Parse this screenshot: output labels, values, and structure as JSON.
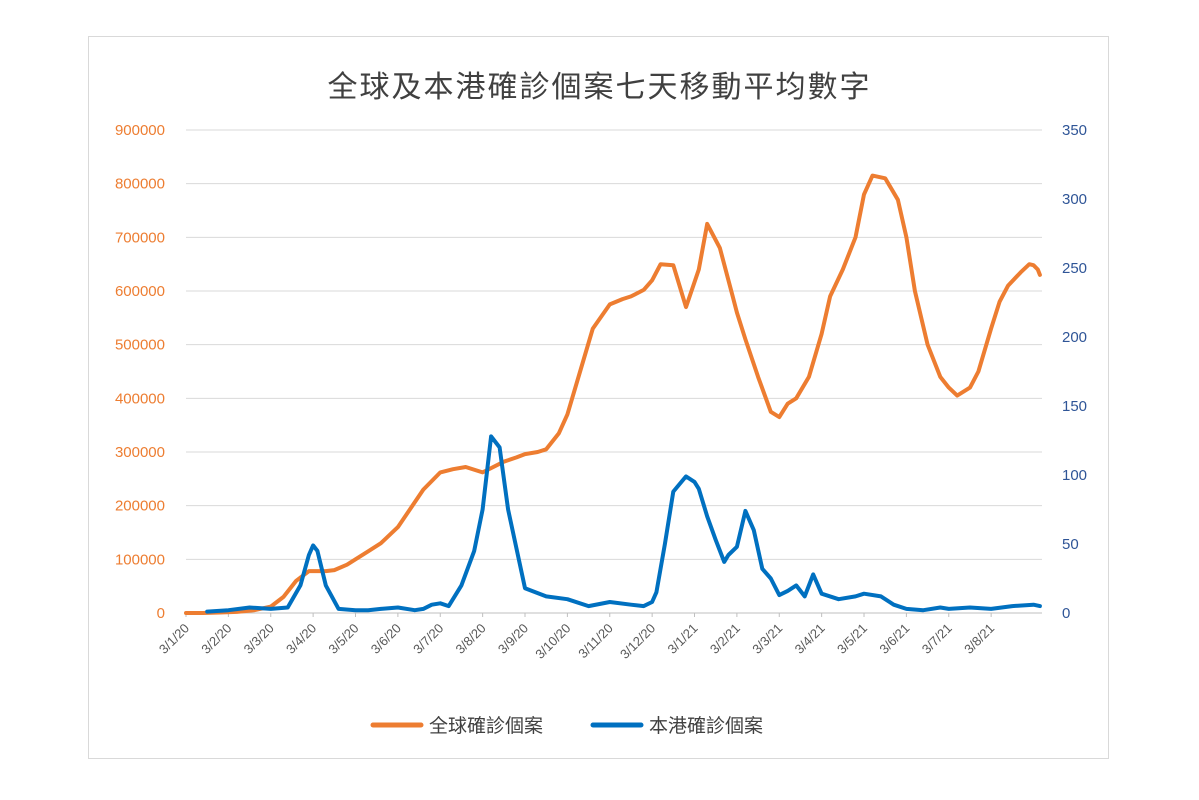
{
  "chart_data": {
    "type": "line",
    "title": "全球及本港確診個案七天移動平均數字",
    "categories": [
      "3/1/20",
      "3/2/20",
      "3/3/20",
      "3/4/20",
      "3/5/20",
      "3/6/20",
      "3/7/20",
      "3/8/20",
      "3/9/20",
      "3/10/20",
      "3/11/20",
      "3/12/20",
      "3/1/21",
      "3/2/21",
      "3/3/21",
      "3/4/21",
      "3/5/21",
      "3/6/21",
      "3/7/21",
      "3/8/21"
    ],
    "y_left": {
      "ticks": [
        "900000",
        "800000",
        "700000",
        "600000",
        "500000",
        "400000",
        "300000",
        "200000",
        "100000",
        "0"
      ],
      "ylim": [
        0,
        900000
      ]
    },
    "y_right": {
      "ticks": [
        "350",
        "300",
        "250",
        "200",
        "150",
        "100",
        "50",
        "0"
      ],
      "ylim": [
        0,
        350
      ]
    },
    "grid": true,
    "legend_position": "bottom",
    "series": [
      {
        "name": "全球確診個案",
        "axis": "left",
        "color": "#ed7d31",
        "x": [
          0,
          0.4,
          0.8,
          1.2,
          1.6,
          2.0,
          2.3,
          2.6,
          2.9,
          3.1,
          3.3,
          3.5,
          3.8,
          4.0,
          4.3,
          4.6,
          5.0,
          5.3,
          5.6,
          6.0,
          6.3,
          6.6,
          7.0,
          7.2,
          7.5,
          7.8,
          8.0,
          8.3,
          8.5,
          8.8,
          9.0,
          9.3,
          9.6,
          10.0,
          10.3,
          10.5,
          10.8,
          11.0,
          11.2,
          11.5,
          11.8,
          12.1,
          12.3,
          12.6,
          12.9,
          13.0,
          13.2,
          13.5,
          13.8,
          14.0,
          14.2,
          14.4,
          14.7,
          15.0,
          15.2,
          15.5,
          15.8,
          16.0,
          16.2,
          16.5,
          16.8,
          17.0,
          17.2,
          17.5,
          17.8,
          18.0,
          18.2,
          18.5,
          18.7,
          19.0,
          19.2,
          19.4,
          19.7,
          19.9,
          20.0,
          20.1,
          20.15
        ],
        "values": [
          0,
          0,
          1000,
          2000,
          5000,
          12000,
          30000,
          60000,
          78000,
          78000,
          78000,
          80000,
          90000,
          100000,
          115000,
          130000,
          160000,
          195000,
          230000,
          262000,
          268000,
          272000,
          262000,
          270000,
          282000,
          290000,
          296000,
          300000,
          305000,
          335000,
          370000,
          450000,
          530000,
          575000,
          585000,
          590000,
          602000,
          620000,
          650000,
          648000,
          570000,
          640000,
          725000,
          680000,
          590000,
          560000,
          510000,
          440000,
          375000,
          365000,
          390000,
          400000,
          440000,
          520000,
          590000,
          640000,
          700000,
          780000,
          815000,
          810000,
          770000,
          700000,
          600000,
          500000,
          440000,
          420000,
          405000,
          420000,
          450000,
          530000,
          580000,
          610000,
          635000,
          650000,
          648000,
          640000,
          630000
        ]
      },
      {
        "name": "本港確診個案",
        "axis": "right",
        "color": "#0070c0",
        "x": [
          0.5,
          1.0,
          1.5,
          2.0,
          2.4,
          2.7,
          2.9,
          3.0,
          3.1,
          3.3,
          3.6,
          4.0,
          4.3,
          4.6,
          5.0,
          5.4,
          5.6,
          5.8,
          6.0,
          6.2,
          6.5,
          6.8,
          7.0,
          7.2,
          7.4,
          7.6,
          8.0,
          8.5,
          9.0,
          9.5,
          10.0,
          10.5,
          10.8,
          11.0,
          11.1,
          11.3,
          11.5,
          11.8,
          12.0,
          12.1,
          12.3,
          12.5,
          12.7,
          12.8,
          13.0,
          13.2,
          13.4,
          13.6,
          13.8,
          14.0,
          14.2,
          14.4,
          14.6,
          14.8,
          15.0,
          15.4,
          15.8,
          16.0,
          16.4,
          16.7,
          17.0,
          17.4,
          17.8,
          18.0,
          18.5,
          19.0,
          19.5,
          20.0,
          20.15
        ],
        "values": [
          1,
          2,
          4,
          3,
          4,
          20,
          42,
          49,
          45,
          20,
          3,
          2,
          2,
          3,
          4,
          2,
          3,
          6,
          7,
          5,
          20,
          45,
          75,
          128,
          120,
          75,
          18,
          12,
          10,
          5,
          8,
          6,
          5,
          8,
          15,
          50,
          88,
          99,
          95,
          90,
          70,
          53,
          37,
          42,
          48,
          74,
          60,
          32,
          25,
          13,
          16,
          20,
          12,
          28,
          14,
          10,
          12,
          14,
          12,
          6,
          3,
          2,
          4,
          3,
          4,
          3,
          5,
          6,
          5
        ]
      }
    ]
  }
}
